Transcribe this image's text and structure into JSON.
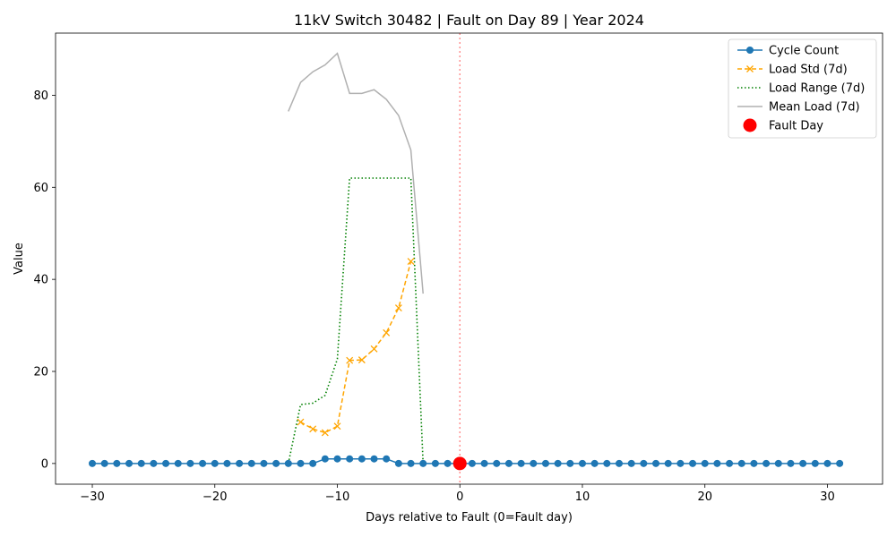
{
  "chart_data": {
    "type": "line",
    "title": "11kV Switch 30482 | Fault on Day 89 | Year 2024",
    "xlabel": "Days relative to Fault (0=Fault day)",
    "ylabel": "Value",
    "xlim": [
      -33,
      34.5
    ],
    "ylim": [
      -4.5,
      93.5
    ],
    "xticks": [
      -30,
      -20,
      -10,
      0,
      10,
      20,
      30
    ],
    "yticks": [
      0,
      20,
      40,
      60,
      80
    ],
    "grid": false,
    "legend_position": "top-right",
    "fault_day": 0,
    "series": [
      {
        "name": "Cycle Count",
        "color": "#1f77b4",
        "style": "solid-dots",
        "x": [
          -30,
          -29,
          -28,
          -27,
          -26,
          -25,
          -24,
          -23,
          -22,
          -21,
          -20,
          -19,
          -18,
          -17,
          -16,
          -15,
          -14,
          -13,
          -12,
          -11,
          -10,
          -9,
          -8,
          -7,
          -6,
          -5,
          -4,
          -3,
          -2,
          -1,
          0,
          1,
          2,
          3,
          4,
          5,
          6,
          7,
          8,
          9,
          10,
          11,
          12,
          13,
          14,
          15,
          16,
          17,
          18,
          19,
          20,
          21,
          22,
          23,
          24,
          25,
          26,
          27,
          28,
          29,
          30,
          31
        ],
        "y": [
          0,
          0,
          0,
          0,
          0,
          0,
          0,
          0,
          0,
          0,
          0,
          0,
          0,
          0,
          0,
          0,
          0,
          0,
          0,
          1,
          1,
          1,
          1,
          1,
          1,
          0,
          0,
          0,
          0,
          0,
          0,
          0,
          0,
          0,
          0,
          0,
          0,
          0,
          0,
          0,
          0,
          0,
          0,
          0,
          0,
          0,
          0,
          0,
          0,
          0,
          0,
          0,
          0,
          0,
          0,
          0,
          0,
          0,
          0,
          0,
          0,
          0
        ]
      },
      {
        "name": "Load Std (7d)",
        "color": "#ffa500",
        "style": "dashed-x",
        "x": [
          -13,
          -12,
          -11,
          -10,
          -9,
          -8,
          -7,
          -6,
          -5,
          -4
        ],
        "y": [
          9.0,
          7.5,
          6.7,
          8.1,
          22.4,
          22.5,
          24.9,
          28.4,
          33.8,
          43.9
        ]
      },
      {
        "name": "Load Range (7d)",
        "color": "#008000",
        "style": "dotted",
        "x": [
          -14,
          -13,
          -12,
          -11,
          -10,
          -9,
          -8,
          -7,
          -6,
          -5,
          -4,
          -3
        ],
        "y": [
          0,
          12.8,
          13.1,
          14.8,
          22.7,
          62.0,
          62.0,
          62.0,
          62.0,
          62.0,
          62.0,
          0
        ]
      },
      {
        "name": "Mean Load (7d)",
        "color": "#b0b0b0",
        "style": "solid",
        "x": [
          -14,
          -13,
          -12,
          -11,
          -10,
          -9,
          -8,
          -7,
          -6,
          -5,
          -4,
          -3
        ],
        "y": [
          76.5,
          82.8,
          85.1,
          86.6,
          89.1,
          80.4,
          80.4,
          81.2,
          79.1,
          75.6,
          68.1,
          36.9
        ]
      }
    ],
    "fault_marker": {
      "name": "Fault Day",
      "x": 0,
      "y": 0,
      "color": "#ff0000"
    }
  }
}
